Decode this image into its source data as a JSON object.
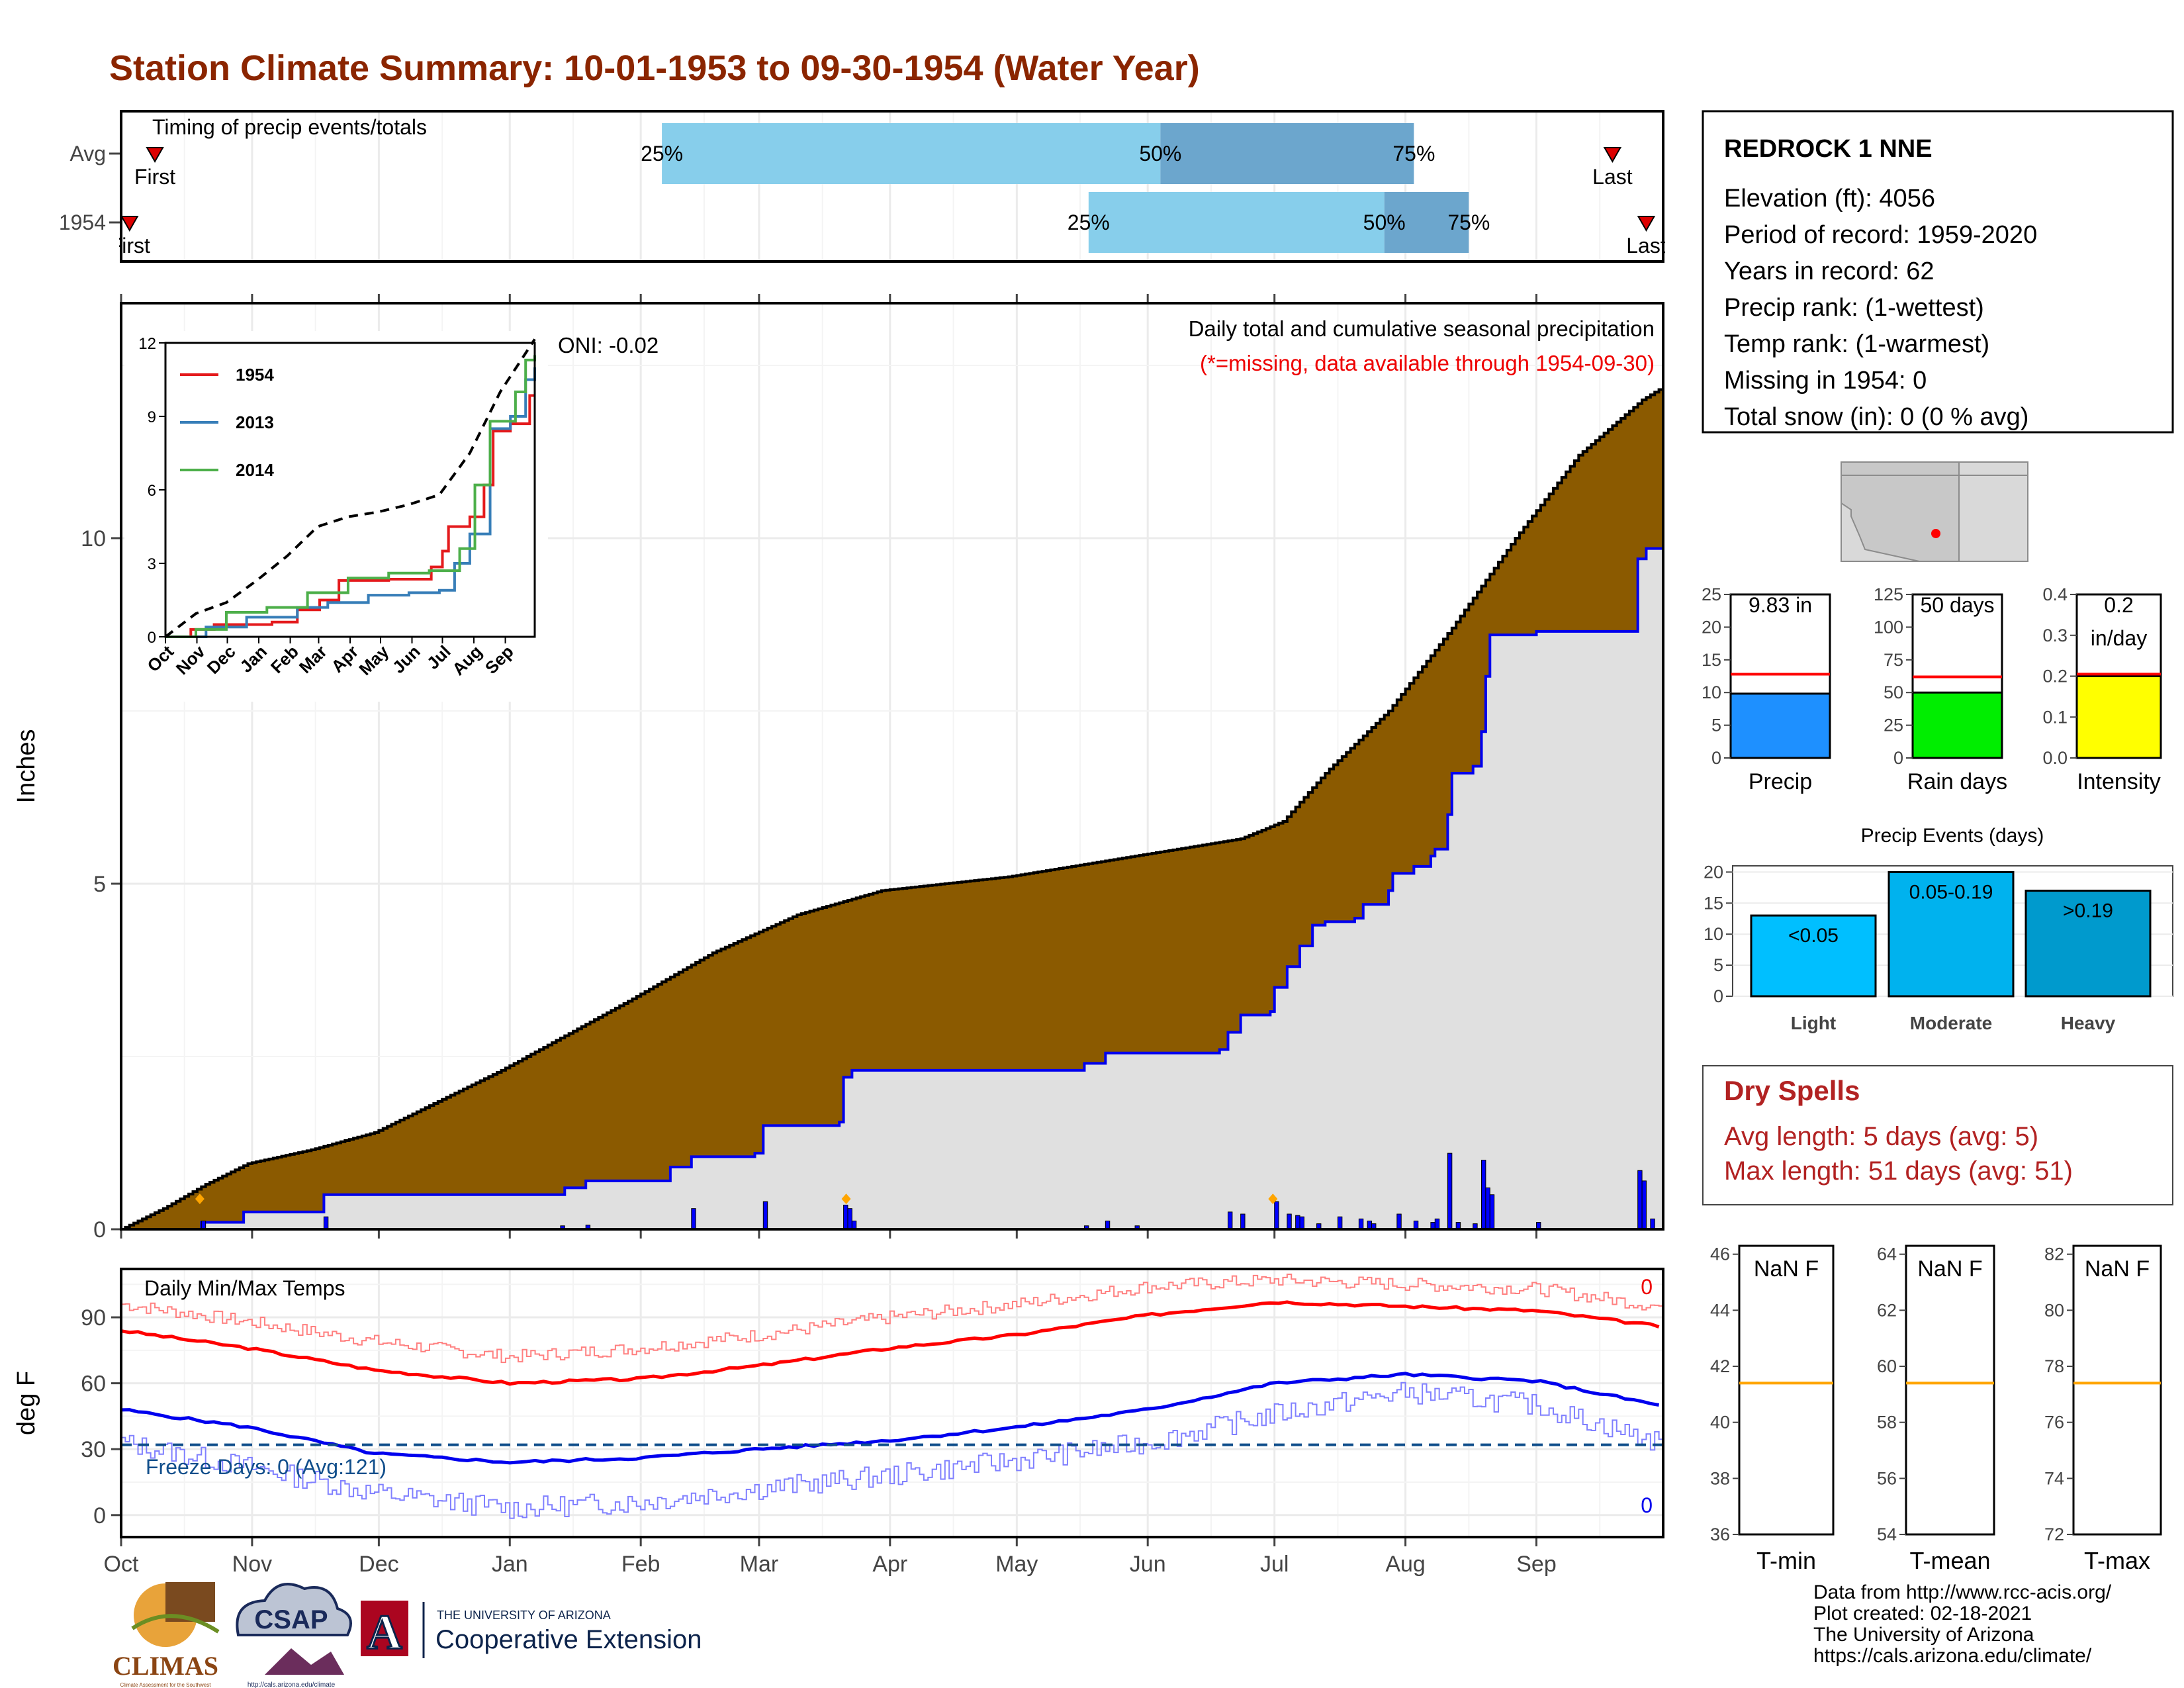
{
  "title": "Station Climate Summary: 10-01-1953 to 09-30-1954 (Water Year)",
  "colors": {
    "title": "#8b2500",
    "cum_avg_fill": "#8b5a00",
    "cum_obs_line": "#0000ee",
    "daily_bar": "#0000ff",
    "missing_fill": "#e0e0e0",
    "quartile_light": "#87ceeb",
    "quartile_dark": "#6ca6cd",
    "precip_bar": "#1e90ff",
    "raindays_bar": "#00ee00",
    "intensity_bar": "#ffff00",
    "avg_line": "#ff0000",
    "temp_norm_max": "#ff0000",
    "temp_norm_min": "#0000ee",
    "dry_spell_text": "#b22222",
    "freeze_line": "#104e8b",
    "summary_line": "#ffa500"
  },
  "timing": {
    "title": "Timing of precip events/totals",
    "rows": [
      {
        "label": "Avg",
        "first_label": "First",
        "last_label": "Last",
        "first_day": 8,
        "last_day": 353,
        "q25": 128,
        "q50": 246,
        "q75": 306,
        "q25_label": "25%",
        "q50_label": "50%",
        "q75_label": "75%"
      },
      {
        "label": "1954",
        "first_label": "First",
        "last_label": "Last",
        "first_day": 2,
        "last_day": 361,
        "q25": 229,
        "q50": 299,
        "q75": 319,
        "q25_label": "25%",
        "q50_label": "50%",
        "q75_label": "75%"
      }
    ]
  },
  "months": [
    "Oct",
    "Nov",
    "Dec",
    "Jan",
    "Feb",
    "Mar",
    "Apr",
    "May",
    "Jun",
    "Jul",
    "Aug",
    "Sep"
  ],
  "month_starts": [
    0,
    31,
    61,
    92,
    123,
    151,
    182,
    212,
    243,
    273,
    304,
    335
  ],
  "precip": {
    "ylabel": "Inches",
    "y_ticks": [
      "0",
      "5",
      "10"
    ],
    "ylim": [
      0,
      13.4
    ],
    "text_top": "Daily total and cumulative seasonal precipitation",
    "text_missing": "(*=missing, data available through 1954-09-30)",
    "oni": "ONI: -0.02",
    "avg_cum": [
      [
        0,
        0
      ],
      [
        10,
        0.3
      ],
      [
        20,
        0.65
      ],
      [
        30,
        0.95
      ],
      [
        45,
        1.15
      ],
      [
        60,
        1.4
      ],
      [
        90,
        2.3
      ],
      [
        120,
        3.3
      ],
      [
        140,
        4.0
      ],
      [
        160,
        4.55
      ],
      [
        180,
        4.9
      ],
      [
        210,
        5.1
      ],
      [
        240,
        5.4
      ],
      [
        265,
        5.65
      ],
      [
        275,
        5.9
      ],
      [
        285,
        6.6
      ],
      [
        300,
        7.5
      ],
      [
        315,
        8.7
      ],
      [
        330,
        10.0
      ],
      [
        345,
        11.2
      ],
      [
        360,
        12.0
      ],
      [
        364,
        12.15
      ]
    ],
    "obs_cum": [
      [
        0,
        0
      ],
      [
        18,
        0
      ],
      [
        19,
        0.1
      ],
      [
        28,
        0.1
      ],
      [
        29,
        0.25
      ],
      [
        47,
        0.25
      ],
      [
        48,
        0.5
      ],
      [
        104,
        0.5
      ],
      [
        105,
        0.6
      ],
      [
        110,
        0.7
      ],
      [
        128,
        0.7
      ],
      [
        130,
        0.9
      ],
      [
        135,
        1.05
      ],
      [
        150,
        1.1
      ],
      [
        152,
        1.5
      ],
      [
        170,
        1.55
      ],
      [
        171,
        2.2
      ],
      [
        173,
        2.3
      ],
      [
        220,
        2.3
      ],
      [
        228,
        2.4
      ],
      [
        233,
        2.55
      ],
      [
        260,
        2.6
      ],
      [
        262,
        2.85
      ],
      [
        265,
        3.1
      ],
      [
        272,
        3.15
      ],
      [
        273,
        3.5
      ],
      [
        276,
        3.8
      ],
      [
        279,
        4.1
      ],
      [
        282,
        4.4
      ],
      [
        285,
        4.45
      ],
      [
        292,
        4.5
      ],
      [
        294,
        4.7
      ],
      [
        300,
        4.9
      ],
      [
        301,
        5.15
      ],
      [
        306,
        5.25
      ],
      [
        310,
        5.4
      ],
      [
        311,
        5.5
      ],
      [
        314,
        6.0
      ],
      [
        315,
        6.6
      ],
      [
        320,
        6.7
      ],
      [
        322,
        7.2
      ],
      [
        323,
        8.0
      ],
      [
        324,
        8.6
      ],
      [
        335,
        8.65
      ],
      [
        358,
        8.65
      ],
      [
        359,
        9.7
      ],
      [
        361,
        9.85
      ],
      [
        364,
        9.85
      ]
    ],
    "daily_bars": [
      [
        19,
        0.12
      ],
      [
        48,
        0.18
      ],
      [
        104,
        0.05
      ],
      [
        110,
        0.06
      ],
      [
        135,
        0.3
      ],
      [
        152,
        0.4
      ],
      [
        171,
        0.35
      ],
      [
        172,
        0.3
      ],
      [
        173,
        0.12
      ],
      [
        228,
        0.05
      ],
      [
        233,
        0.12
      ],
      [
        240,
        0.05
      ],
      [
        262,
        0.25
      ],
      [
        265,
        0.22
      ],
      [
        273,
        0.4
      ],
      [
        276,
        0.22
      ],
      [
        278,
        0.2
      ],
      [
        279,
        0.18
      ],
      [
        283,
        0.08
      ],
      [
        288,
        0.18
      ],
      [
        293,
        0.15
      ],
      [
        295,
        0.12
      ],
      [
        296,
        0.08
      ],
      [
        302,
        0.22
      ],
      [
        306,
        0.12
      ],
      [
        310,
        0.1
      ],
      [
        311,
        0.15
      ],
      [
        314,
        1.1
      ],
      [
        316,
        0.1
      ],
      [
        320,
        0.08
      ],
      [
        322,
        1.0
      ],
      [
        323,
        0.6
      ],
      [
        324,
        0.5
      ],
      [
        335,
        0.1
      ],
      [
        359,
        0.85
      ],
      [
        360,
        0.7
      ],
      [
        362,
        0.15
      ]
    ],
    "special_markers": [
      18,
      171,
      272
    ]
  },
  "inset": {
    "series": [
      {
        "name": "1954",
        "color": "#e41a1c",
        "points": [
          [
            0,
            0
          ],
          [
            25,
            0.3
          ],
          [
            48,
            0.5
          ],
          [
            105,
            0.6
          ],
          [
            130,
            1.1
          ],
          [
            152,
            1.5
          ],
          [
            171,
            2.3
          ],
          [
            220,
            2.35
          ],
          [
            262,
            2.85
          ],
          [
            273,
            3.5
          ],
          [
            279,
            4.5
          ],
          [
            300,
            4.9
          ],
          [
            314,
            6.2
          ],
          [
            323,
            8.4
          ],
          [
            340,
            8.7
          ],
          [
            359,
            9.85
          ],
          [
            364,
            9.85
          ]
        ]
      },
      {
        "name": "2013",
        "color": "#377eb8",
        "points": [
          [
            0,
            0
          ],
          [
            40,
            0.4
          ],
          [
            80,
            0.8
          ],
          [
            130,
            1.2
          ],
          [
            160,
            1.4
          ],
          [
            200,
            1.7
          ],
          [
            240,
            1.8
          ],
          [
            270,
            1.9
          ],
          [
            285,
            3.0
          ],
          [
            300,
            4.2
          ],
          [
            320,
            8.5
          ],
          [
            340,
            9.0
          ],
          [
            355,
            10.5
          ],
          [
            364,
            11.0
          ]
        ]
      },
      {
        "name": "2014",
        "color": "#4daf4a",
        "points": [
          [
            0,
            0
          ],
          [
            30,
            0.3
          ],
          [
            60,
            1.0
          ],
          [
            100,
            1.2
          ],
          [
            140,
            1.8
          ],
          [
            180,
            2.4
          ],
          [
            220,
            2.6
          ],
          [
            260,
            2.7
          ],
          [
            290,
            3.6
          ],
          [
            305,
            6.2
          ],
          [
            320,
            8.8
          ],
          [
            345,
            10.0
          ],
          [
            355,
            11.3
          ],
          [
            364,
            11.5
          ]
        ]
      }
    ],
    "y_ticks": [
      "0",
      "3",
      "6",
      "9",
      "12"
    ],
    "ylim": [
      0,
      12
    ],
    "avg_points": [
      [
        0,
        0
      ],
      [
        30,
        0.95
      ],
      [
        60,
        1.4
      ],
      [
        90,
        2.3
      ],
      [
        120,
        3.3
      ],
      [
        150,
        4.5
      ],
      [
        180,
        4.9
      ],
      [
        210,
        5.1
      ],
      [
        240,
        5.4
      ],
      [
        270,
        5.8
      ],
      [
        300,
        7.5
      ],
      [
        330,
        10.0
      ],
      [
        364,
        12.15
      ]
    ]
  },
  "temps": {
    "ylabel": "deg F",
    "title": "Daily Min/Max Temps",
    "y_ticks": [
      "0",
      "30",
      "60",
      "90"
    ],
    "ylim": [
      -10,
      112
    ],
    "freeze_label": "Freeze Days: 0 (Avg:121)",
    "max_missing_count": "0",
    "min_missing_count": "0",
    "norm_max": [
      [
        0,
        84
      ],
      [
        30,
        76
      ],
      [
        60,
        66
      ],
      [
        92,
        60
      ],
      [
        123,
        62
      ],
      [
        151,
        68
      ],
      [
        182,
        76
      ],
      [
        212,
        82
      ],
      [
        243,
        91
      ],
      [
        273,
        97
      ],
      [
        304,
        95
      ],
      [
        335,
        93
      ],
      [
        364,
        86
      ]
    ],
    "norm_min": [
      [
        0,
        48
      ],
      [
        30,
        40
      ],
      [
        60,
        28
      ],
      [
        92,
        24
      ],
      [
        123,
        26
      ],
      [
        151,
        30
      ],
      [
        182,
        34
      ],
      [
        212,
        40
      ],
      [
        243,
        48
      ],
      [
        273,
        60
      ],
      [
        304,
        64
      ],
      [
        335,
        61
      ],
      [
        364,
        50
      ]
    ],
    "rec_max": [
      [
        0,
        96
      ],
      [
        30,
        88
      ],
      [
        60,
        79
      ],
      [
        92,
        72
      ],
      [
        123,
        76
      ],
      [
        151,
        82
      ],
      [
        182,
        90
      ],
      [
        212,
        96
      ],
      [
        243,
        104
      ],
      [
        273,
        107
      ],
      [
        304,
        105
      ],
      [
        335,
        103
      ],
      [
        364,
        95
      ]
    ],
    "rec_min": [
      [
        0,
        33
      ],
      [
        30,
        22
      ],
      [
        60,
        10
      ],
      [
        92,
        3
      ],
      [
        123,
        6
      ],
      [
        151,
        12
      ],
      [
        182,
        18
      ],
      [
        212,
        25
      ],
      [
        243,
        33
      ],
      [
        273,
        46
      ],
      [
        304,
        56
      ],
      [
        335,
        50
      ],
      [
        364,
        33
      ]
    ]
  },
  "station": {
    "name": "REDROCK 1 NNE",
    "lines": [
      "Elevation (ft): 4056",
      "Period of record: 1959-2020",
      "Years in record: 62",
      "Precip rank:  (1-wettest)",
      "Temp rank:  (1-warmest)",
      "Missing in 1954: 0",
      "Total snow (in): 0 (0 % avg)"
    ]
  },
  "summary_bars": [
    {
      "label": "Precip",
      "value_label": "9.83 in",
      "value": 9.83,
      "avg": 12.8,
      "ticks": [
        "0",
        "5",
        "10",
        "15",
        "20",
        "25"
      ],
      "max": 25,
      "color": "#1e90ff"
    },
    {
      "label": "Rain days",
      "value_label": "50 days",
      "value": 50,
      "avg": 62,
      "ticks": [
        "0",
        "25",
        "50",
        "75",
        "100",
        "125"
      ],
      "max": 125,
      "color": "#00ee00"
    },
    {
      "label": "Intensity",
      "value_label": "0.2\nin/day",
      "value": 0.2,
      "avg": 0.205,
      "ticks": [
        "0.0",
        "0.1",
        "0.2",
        "0.3",
        "0.4"
      ],
      "max": 0.4,
      "color": "#ffff00"
    }
  ],
  "events": {
    "title": "Precip Events (days)",
    "ticks": [
      "0",
      "5",
      "10",
      "15",
      "20"
    ],
    "max": 21,
    "bars": [
      {
        "label": "Light",
        "value_label": "<0.05",
        "value": 13,
        "color": "#00bfff"
      },
      {
        "label": "Moderate",
        "value_label": "0.05-0.19",
        "value": 20,
        "color": "#00b2ee"
      },
      {
        "label": "Heavy",
        "value_label": ">0.19",
        "value": 17,
        "color": "#009acd"
      }
    ]
  },
  "dry_spells": {
    "title": "Dry Spells",
    "avg_length": "Avg length: 5 days (avg: 5)",
    "max_length": "Max length: 51 days (avg: 51)"
  },
  "temp_summaries": [
    {
      "label": "T-min",
      "value_label": "NaN F",
      "ticks": [
        "36",
        "38",
        "40",
        "42",
        "44",
        "46"
      ],
      "min": 36,
      "max": 46.3,
      "avg": 41.4
    },
    {
      "label": "T-mean",
      "value_label": "NaN F",
      "ticks": [
        "54",
        "56",
        "58",
        "60",
        "62",
        "64"
      ],
      "min": 54,
      "max": 64.3,
      "avg": 59.4
    },
    {
      "label": "T-max",
      "value_label": "NaN F",
      "ticks": [
        "72",
        "74",
        "76",
        "78",
        "80",
        "82"
      ],
      "min": 72,
      "max": 82.3,
      "avg": 77.4
    }
  ],
  "footer": {
    "lines": [
      "Data from http://www.rcc-acis.org/",
      "Plot created: 02-18-2021",
      "The University of Arizona",
      "https://cals.arizona.edu/climate/"
    ]
  },
  "logos": {
    "climas": "CLIMAS",
    "climas_sub": "Climate Assessment for the Southwest",
    "csap": "CSAP",
    "csap_url": "http://cals.arizona.edu/climate",
    "ua_top": "THE UNIVERSITY OF ARIZONA",
    "ua_main": "Cooperative Extension",
    "ua_letter": "A"
  }
}
